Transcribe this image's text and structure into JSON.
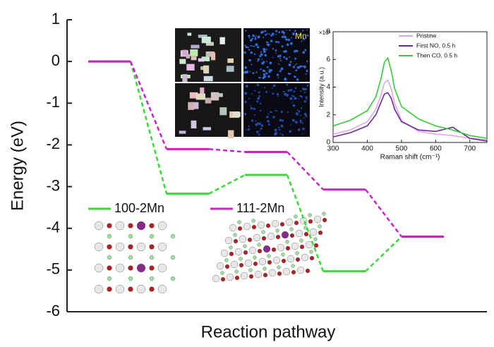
{
  "chart_data": [
    {
      "type": "energy-levels",
      "ylabel": "Energy (eV)",
      "xlabel": "Reaction pathway",
      "categories": [
        null,
        null,
        null,
        null,
        null
      ],
      "series": [
        {
          "name": "100-2Mn",
          "color": "#33dd33",
          "values": [
            0,
            -3.17,
            -2.72,
            -5.03,
            -4.2
          ]
        },
        {
          "name": "111-2Mn",
          "color": "#cc22cc",
          "values": [
            0,
            -2.1,
            -2.17,
            -3.07,
            -4.2
          ]
        }
      ],
      "ylim": [
        -6,
        1
      ],
      "yticks": [
        -6,
        -5,
        -4,
        -3,
        -2,
        -1,
        0,
        1
      ]
    },
    {
      "type": "line",
      "ylabel": "Intensity (a.u.)",
      "xlabel": "Raman shift (cm⁻¹)",
      "y_multiplier": "×10³",
      "annotation": "Mn",
      "x": [
        300,
        350,
        400,
        425,
        440,
        450,
        460,
        470,
        480,
        500,
        550,
        600,
        650,
        700,
        750
      ],
      "series": [
        {
          "name": "Pristine",
          "color": "#e0a8e0",
          "values": [
            0.6,
            0.9,
            1.5,
            2.4,
            3.4,
            4.3,
            4.5,
            3.9,
            2.8,
            1.6,
            0.8,
            0.6,
            0.5,
            0.3,
            0.2
          ]
        },
        {
          "name": "First NO, 0.5 h",
          "color": "#6a2aa0",
          "values": [
            0.4,
            0.7,
            1.2,
            2.0,
            2.9,
            3.5,
            3.6,
            3.2,
            2.4,
            1.5,
            0.9,
            0.8,
            1.1,
            0.3,
            0.1
          ]
        },
        {
          "name": "Then CO, 0.5 h",
          "color": "#33cc33",
          "values": [
            1.2,
            1.6,
            2.3,
            3.3,
            4.6,
            5.8,
            6.1,
            5.2,
            3.9,
            2.6,
            1.7,
            1.2,
            0.9,
            0.5,
            0.3
          ]
        }
      ],
      "xlim": [
        300,
        750
      ],
      "xticks": [
        300,
        400,
        500,
        600,
        700
      ],
      "ylim": [
        0,
        8
      ],
      "yticks": [
        0,
        2,
        4,
        6,
        8
      ]
    }
  ]
}
